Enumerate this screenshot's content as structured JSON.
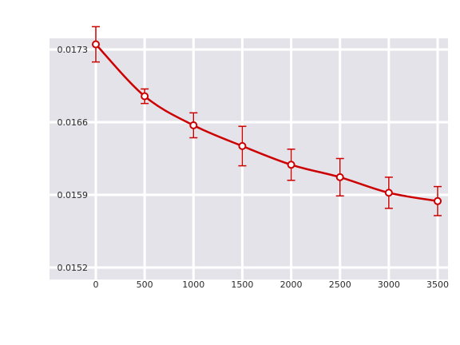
{
  "chart_data": {
    "type": "line",
    "x": [
      0,
      500,
      1000,
      1500,
      2000,
      2500,
      3000,
      3500
    ],
    "series": [
      {
        "values": [
          0.01735,
          0.01685,
          0.01657,
          0.01637,
          0.01619,
          0.01607,
          0.01592,
          0.01584
        ],
        "error": [
          0.00017,
          7e-05,
          0.00012,
          0.00019,
          0.00015,
          0.00018,
          0.00015,
          0.00014
        ],
        "color": "#cc0000"
      }
    ],
    "xlim": [
      0,
      3500
    ],
    "ylim": [
      0.0151,
      0.0176
    ],
    "yticks": [
      0.0152,
      0.0159,
      0.0166,
      0.0173
    ],
    "grid": true,
    "background": "#e5e3ea",
    "grid_color": "#ffffff"
  }
}
